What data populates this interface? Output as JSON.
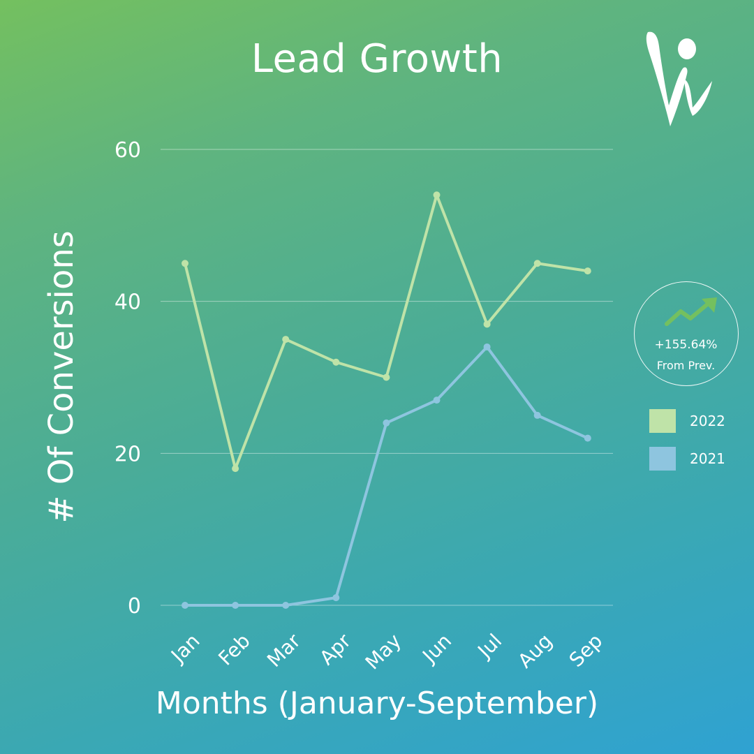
{
  "title": "Lead Growth",
  "colors": {
    "series_2022": "#bfe3a8",
    "series_2021": "#8ec5df",
    "grid": "#ffffff"
  },
  "badge": {
    "icon": "trend-up-arrow-icon",
    "value": "+155.64%",
    "caption": "From Prev."
  },
  "logo": {
    "icon": "brand-logo-icon"
  },
  "chart_data": {
    "type": "line",
    "title": "Lead Growth",
    "xlabel": "Months (January-September)",
    "ylabel": "# Of Conversions",
    "categories": [
      "Jan",
      "Feb",
      "Mar",
      "Apr",
      "May",
      "Jun",
      "Jul",
      "Aug",
      "Sep"
    ],
    "ylim": [
      0,
      60
    ],
    "yticks": [
      0,
      20,
      40,
      60
    ],
    "grid": true,
    "legend_position": "right",
    "series": [
      {
        "name": "2022",
        "color": "#bfe3a8",
        "values": [
          45,
          18,
          35,
          32,
          30,
          54,
          37,
          45,
          44
        ]
      },
      {
        "name": "2021",
        "color": "#8ec5df",
        "values": [
          0,
          0,
          0,
          1,
          24,
          27,
          34,
          25,
          22
        ]
      }
    ]
  }
}
